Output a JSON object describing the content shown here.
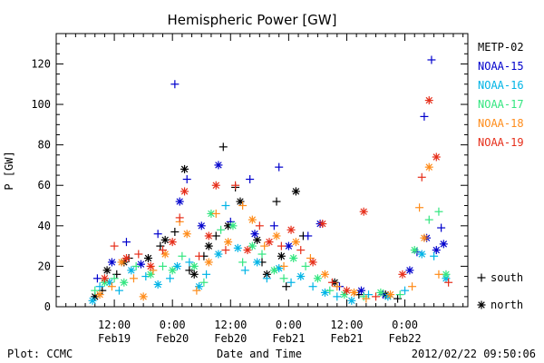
{
  "chart_data": {
    "type": "scatter",
    "title": "Hemispheric Power [GW]",
    "ylabel": "P [GW]",
    "xlabel": "Date and Time",
    "ylim": [
      0,
      135
    ],
    "xlim": [
      0,
      85
    ],
    "x_unit_note": "hours since 2012-02-19 00:00 UT",
    "y_ticks": [
      0,
      20,
      40,
      60,
      80,
      100,
      120
    ],
    "x_ticks": [
      {
        "x": 12,
        "time": "12:00",
        "date": "Feb19"
      },
      {
        "x": 24,
        "time": "0:00",
        "date": "Feb20"
      },
      {
        "x": 36,
        "time": "12:00",
        "date": "Feb20"
      },
      {
        "x": 48,
        "time": "0:00",
        "date": "Feb21"
      },
      {
        "x": 60,
        "time": "12:00",
        "date": "Feb21"
      },
      {
        "x": 72,
        "time": "0:00",
        "date": "Feb22"
      }
    ],
    "x_minor_step": 2,
    "y_minor_step": 5,
    "series": [
      {
        "name": "METP-02",
        "color": "#000000",
        "points": [
          {
            "x": 8.0,
            "y": 5,
            "h": "n"
          },
          {
            "x": 9.5,
            "y": 8,
            "h": "s"
          },
          {
            "x": 10.5,
            "y": 18,
            "h": "n"
          },
          {
            "x": 12.5,
            "y": 16,
            "h": "s"
          },
          {
            "x": 14.0,
            "y": 22,
            "h": "n"
          },
          {
            "x": 15.0,
            "y": 24,
            "h": "s"
          },
          {
            "x": 19.0,
            "y": 24,
            "h": "n"
          },
          {
            "x": 21.5,
            "y": 30,
            "h": "s"
          },
          {
            "x": 22.5,
            "y": 33,
            "h": "n"
          },
          {
            "x": 24.5,
            "y": 37,
            "h": "s"
          },
          {
            "x": 26.5,
            "y": 68,
            "h": "n"
          },
          {
            "x": 27.5,
            "y": 18,
            "h": "s"
          },
          {
            "x": 28.5,
            "y": 16,
            "h": "n"
          },
          {
            "x": 30.5,
            "y": 25,
            "h": "s"
          },
          {
            "x": 31.5,
            "y": 30,
            "h": "n"
          },
          {
            "x": 33.0,
            "y": 35,
            "h": "s"
          },
          {
            "x": 34.5,
            "y": 79,
            "h": "s"
          },
          {
            "x": 35.5,
            "y": 40,
            "h": "n"
          },
          {
            "x": 37.0,
            "y": 59,
            "h": "s"
          },
          {
            "x": 38.0,
            "y": 52,
            "h": "n"
          },
          {
            "x": 41.5,
            "y": 33,
            "h": "n"
          },
          {
            "x": 42.5,
            "y": 22,
            "h": "s"
          },
          {
            "x": 43.5,
            "y": 16,
            "h": "n"
          },
          {
            "x": 45.5,
            "y": 52,
            "h": "s"
          },
          {
            "x": 46.5,
            "y": 25,
            "h": "n"
          },
          {
            "x": 47.5,
            "y": 10,
            "h": "s"
          },
          {
            "x": 49.5,
            "y": 57,
            "h": "n"
          },
          {
            "x": 51.0,
            "y": 35,
            "h": "s"
          },
          {
            "x": 57.5,
            "y": 12,
            "h": "n"
          },
          {
            "x": 62.5,
            "y": 6,
            "h": "s"
          },
          {
            "x": 68.0,
            "y": 6,
            "h": "n"
          },
          {
            "x": 70.5,
            "y": 4,
            "h": "s"
          }
        ]
      },
      {
        "name": "NOAA-15",
        "color": "#0000cc",
        "points": [
          {
            "x": 8.5,
            "y": 14,
            "h": "s"
          },
          {
            "x": 11.5,
            "y": 22,
            "h": "n"
          },
          {
            "x": 14.5,
            "y": 32,
            "h": "s"
          },
          {
            "x": 17.5,
            "y": 21,
            "h": "n"
          },
          {
            "x": 21.0,
            "y": 36,
            "h": "s"
          },
          {
            "x": 24.5,
            "y": 110,
            "h": "s"
          },
          {
            "x": 25.5,
            "y": 52,
            "h": "n"
          },
          {
            "x": 27.0,
            "y": 63,
            "h": "s"
          },
          {
            "x": 30.0,
            "y": 40,
            "h": "n"
          },
          {
            "x": 33.5,
            "y": 70,
            "h": "n"
          },
          {
            "x": 36.0,
            "y": 42,
            "h": "s"
          },
          {
            "x": 40.0,
            "y": 63,
            "h": "s"
          },
          {
            "x": 41.0,
            "y": 36,
            "h": "n"
          },
          {
            "x": 45.0,
            "y": 40,
            "h": "s"
          },
          {
            "x": 46.0,
            "y": 69,
            "h": "s"
          },
          {
            "x": 48.0,
            "y": 30,
            "h": "n"
          },
          {
            "x": 52.0,
            "y": 35,
            "h": "s"
          },
          {
            "x": 54.5,
            "y": 41,
            "h": "n"
          },
          {
            "x": 58.5,
            "y": 10,
            "h": "s"
          },
          {
            "x": 63.0,
            "y": 8,
            "h": "n"
          },
          {
            "x": 67.5,
            "y": 6,
            "h": "s"
          },
          {
            "x": 73.0,
            "y": 18,
            "h": "n"
          },
          {
            "x": 74.5,
            "y": 27,
            "h": "s"
          },
          {
            "x": 76.0,
            "y": 94,
            "h": "s"
          },
          {
            "x": 76.5,
            "y": 34,
            "h": "n"
          },
          {
            "x": 77.5,
            "y": 122,
            "h": "s"
          },
          {
            "x": 78.5,
            "y": 28,
            "h": "n"
          },
          {
            "x": 79.5,
            "y": 39,
            "h": "s"
          },
          {
            "x": 80.0,
            "y": 31,
            "h": "n"
          }
        ]
      },
      {
        "name": "NOAA-16",
        "color": "#00b4e6",
        "points": [
          {
            "x": 7.5,
            "y": 3,
            "h": "n"
          },
          {
            "x": 9.0,
            "y": 10,
            "h": "s"
          },
          {
            "x": 11.0,
            "y": 12,
            "h": "n"
          },
          {
            "x": 13.0,
            "y": 8,
            "h": "s"
          },
          {
            "x": 15.5,
            "y": 18,
            "h": "n"
          },
          {
            "x": 18.5,
            "y": 15,
            "h": "s"
          },
          {
            "x": 21.0,
            "y": 11,
            "h": "n"
          },
          {
            "x": 23.5,
            "y": 14,
            "h": "s"
          },
          {
            "x": 25.0,
            "y": 20,
            "h": "n"
          },
          {
            "x": 27.5,
            "y": 22,
            "h": "s"
          },
          {
            "x": 29.5,
            "y": 10,
            "h": "n"
          },
          {
            "x": 31.0,
            "y": 16,
            "h": "s"
          },
          {
            "x": 33.5,
            "y": 26,
            "h": "n"
          },
          {
            "x": 35.0,
            "y": 50,
            "h": "s"
          },
          {
            "x": 37.5,
            "y": 29,
            "h": "n"
          },
          {
            "x": 39.0,
            "y": 18,
            "h": "s"
          },
          {
            "x": 41.5,
            "y": 22,
            "h": "n"
          },
          {
            "x": 43.5,
            "y": 14,
            "h": "s"
          },
          {
            "x": 46.0,
            "y": 19,
            "h": "n"
          },
          {
            "x": 48.5,
            "y": 12,
            "h": "s"
          },
          {
            "x": 50.5,
            "y": 15,
            "h": "n"
          },
          {
            "x": 53.0,
            "y": 10,
            "h": "s"
          },
          {
            "x": 55.5,
            "y": 7,
            "h": "n"
          },
          {
            "x": 58.0,
            "y": 5,
            "h": "s"
          },
          {
            "x": 61.0,
            "y": 3,
            "h": "n"
          },
          {
            "x": 64.5,
            "y": 6,
            "h": "s"
          },
          {
            "x": 68.5,
            "y": 5,
            "h": "n"
          },
          {
            "x": 72.0,
            "y": 8,
            "h": "s"
          },
          {
            "x": 75.5,
            "y": 26,
            "h": "n"
          },
          {
            "x": 78.0,
            "y": 25,
            "h": "s"
          },
          {
            "x": 80.5,
            "y": 14,
            "h": "n"
          }
        ]
      },
      {
        "name": "NOAA-17",
        "color": "#33e680",
        "points": [
          {
            "x": 8.0,
            "y": 8,
            "h": "s"
          },
          {
            "x": 10.0,
            "y": 12,
            "h": "n"
          },
          {
            "x": 12.0,
            "y": 14,
            "h": "s"
          },
          {
            "x": 14.0,
            "y": 12,
            "h": "n"
          },
          {
            "x": 16.5,
            "y": 20,
            "h": "s"
          },
          {
            "x": 19.5,
            "y": 16,
            "h": "n"
          },
          {
            "x": 22.0,
            "y": 20,
            "h": "s"
          },
          {
            "x": 24.0,
            "y": 18,
            "h": "n"
          },
          {
            "x": 26.0,
            "y": 25,
            "h": "s"
          },
          {
            "x": 28.5,
            "y": 20,
            "h": "n"
          },
          {
            "x": 30.5,
            "y": 12,
            "h": "s"
          },
          {
            "x": 32.0,
            "y": 46,
            "h": "n"
          },
          {
            "x": 34.0,
            "y": 38,
            "h": "s"
          },
          {
            "x": 36.5,
            "y": 40,
            "h": "n"
          },
          {
            "x": 38.5,
            "y": 22,
            "h": "s"
          },
          {
            "x": 40.5,
            "y": 30,
            "h": "n"
          },
          {
            "x": 42.5,
            "y": 26,
            "h": "s"
          },
          {
            "x": 45.0,
            "y": 18,
            "h": "n"
          },
          {
            "x": 47.0,
            "y": 14,
            "h": "s"
          },
          {
            "x": 49.0,
            "y": 24,
            "h": "n"
          },
          {
            "x": 51.5,
            "y": 20,
            "h": "s"
          },
          {
            "x": 54.0,
            "y": 14,
            "h": "n"
          },
          {
            "x": 56.5,
            "y": 8,
            "h": "s"
          },
          {
            "x": 59.5,
            "y": 6,
            "h": "n"
          },
          {
            "x": 63.5,
            "y": 5,
            "h": "s"
          },
          {
            "x": 67.0,
            "y": 7,
            "h": "n"
          },
          {
            "x": 71.0,
            "y": 6,
            "h": "s"
          },
          {
            "x": 74.0,
            "y": 28,
            "h": "n"
          },
          {
            "x": 77.0,
            "y": 43,
            "h": "s"
          },
          {
            "x": 79.0,
            "y": 47,
            "h": "s"
          },
          {
            "x": 80.5,
            "y": 16,
            "h": "n"
          }
        ]
      },
      {
        "name": "NOAA-18",
        "color": "#ff8c1a",
        "points": [
          {
            "x": 9.0,
            "y": 6,
            "h": "n"
          },
          {
            "x": 11.5,
            "y": 10,
            "h": "s"
          },
          {
            "x": 13.5,
            "y": 22,
            "h": "n"
          },
          {
            "x": 16.0,
            "y": 14,
            "h": "s"
          },
          {
            "x": 18.0,
            "y": 5,
            "h": "n"
          },
          {
            "x": 20.0,
            "y": 18,
            "h": "s"
          },
          {
            "x": 22.5,
            "y": 26,
            "h": "n"
          },
          {
            "x": 25.5,
            "y": 42,
            "h": "s"
          },
          {
            "x": 27.0,
            "y": 36,
            "h": "n"
          },
          {
            "x": 29.0,
            "y": 8,
            "h": "s"
          },
          {
            "x": 31.5,
            "y": 22,
            "h": "n"
          },
          {
            "x": 33.0,
            "y": 46,
            "h": "s"
          },
          {
            "x": 35.5,
            "y": 32,
            "h": "n"
          },
          {
            "x": 38.5,
            "y": 50,
            "h": "s"
          },
          {
            "x": 40.5,
            "y": 43,
            "h": "n"
          },
          {
            "x": 43.0,
            "y": 30,
            "h": "s"
          },
          {
            "x": 45.5,
            "y": 35,
            "h": "n"
          },
          {
            "x": 47.0,
            "y": 20,
            "h": "s"
          },
          {
            "x": 49.5,
            "y": 32,
            "h": "n"
          },
          {
            "x": 52.5,
            "y": 24,
            "h": "s"
          },
          {
            "x": 55.5,
            "y": 16,
            "h": "n"
          },
          {
            "x": 58.0,
            "y": 10,
            "h": "s"
          },
          {
            "x": 61.5,
            "y": 7,
            "h": "n"
          },
          {
            "x": 64.0,
            "y": 4,
            "h": "s"
          },
          {
            "x": 69.0,
            "y": 6,
            "h": "n"
          },
          {
            "x": 73.5,
            "y": 10,
            "h": "s"
          },
          {
            "x": 75.0,
            "y": 49,
            "h": "s"
          },
          {
            "x": 76.0,
            "y": 34,
            "h": "n"
          },
          {
            "x": 77.0,
            "y": 69,
            "h": "n"
          },
          {
            "x": 79.0,
            "y": 16,
            "h": "s"
          }
        ]
      },
      {
        "name": "NOAA-19",
        "color": "#e62e1a",
        "points": [
          {
            "x": 10.0,
            "y": 14,
            "h": "n"
          },
          {
            "x": 12.0,
            "y": 30,
            "h": "s"
          },
          {
            "x": 14.5,
            "y": 24,
            "h": "n"
          },
          {
            "x": 17.0,
            "y": 26,
            "h": "s"
          },
          {
            "x": 19.5,
            "y": 20,
            "h": "n"
          },
          {
            "x": 22.0,
            "y": 28,
            "h": "s"
          },
          {
            "x": 24.0,
            "y": 32,
            "h": "n"
          },
          {
            "x": 25.5,
            "y": 44,
            "h": "s"
          },
          {
            "x": 26.5,
            "y": 57,
            "h": "n"
          },
          {
            "x": 29.5,
            "y": 25,
            "h": "s"
          },
          {
            "x": 31.5,
            "y": 35,
            "h": "n"
          },
          {
            "x": 33.0,
            "y": 60,
            "h": "n"
          },
          {
            "x": 35.0,
            "y": 28,
            "h": "s"
          },
          {
            "x": 37.0,
            "y": 60,
            "h": "s"
          },
          {
            "x": 39.5,
            "y": 28,
            "h": "n"
          },
          {
            "x": 42.0,
            "y": 40,
            "h": "s"
          },
          {
            "x": 44.0,
            "y": 32,
            "h": "n"
          },
          {
            "x": 46.5,
            "y": 30,
            "h": "s"
          },
          {
            "x": 48.5,
            "y": 38,
            "h": "n"
          },
          {
            "x": 50.5,
            "y": 28,
            "h": "s"
          },
          {
            "x": 53.0,
            "y": 22,
            "h": "n"
          },
          {
            "x": 55.0,
            "y": 41,
            "h": "n"
          },
          {
            "x": 57.0,
            "y": 12,
            "h": "s"
          },
          {
            "x": 60.0,
            "y": 8,
            "h": "n"
          },
          {
            "x": 63.5,
            "y": 47,
            "h": "n"
          },
          {
            "x": 66.0,
            "y": 5,
            "h": "s"
          },
          {
            "x": 71.5,
            "y": 16,
            "h": "n"
          },
          {
            "x": 75.5,
            "y": 64,
            "h": "s"
          },
          {
            "x": 77.0,
            "y": 102,
            "h": "n"
          },
          {
            "x": 78.5,
            "y": 74,
            "h": "n"
          },
          {
            "x": 81.0,
            "y": 12,
            "h": "s"
          }
        ]
      }
    ],
    "marker_legend": [
      {
        "symbol": "+",
        "label": "south"
      },
      {
        "symbol": "*",
        "label": "north"
      }
    ]
  },
  "footer": {
    "left": "Plot: CCMC",
    "center": "Date and Time",
    "right": "2012/02/22 09:50:06"
  }
}
